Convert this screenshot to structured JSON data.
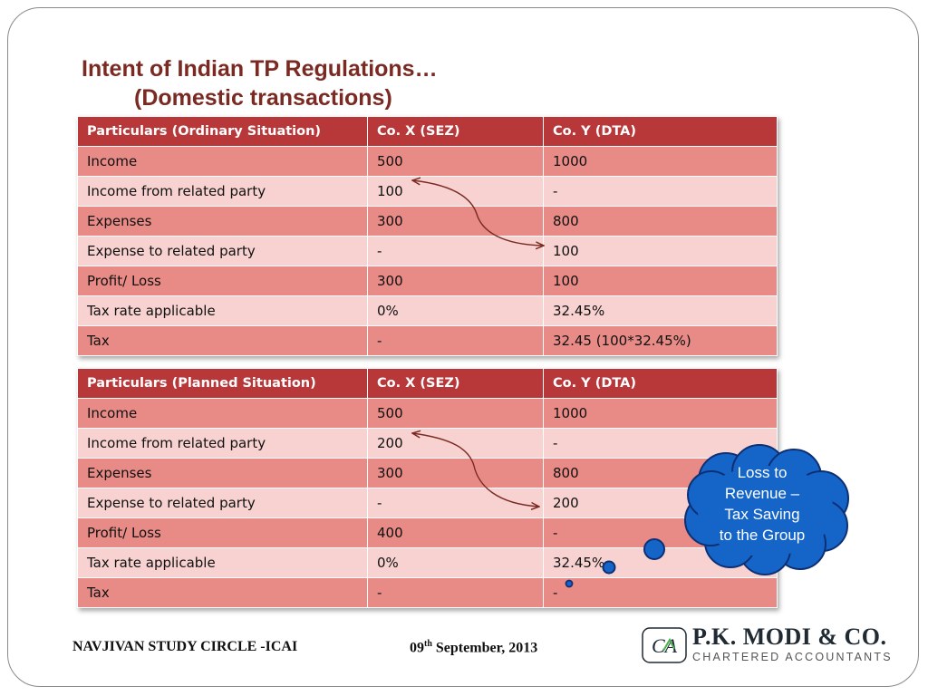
{
  "title": {
    "line1": "Intent of Indian TP Regulations…",
    "line2": "(Domestic transactions)"
  },
  "ordinary_table": {
    "headers": [
      "Particulars (Ordinary Situation)",
      "Co. X (SEZ)",
      "Co. Y  (DTA)"
    ],
    "rows": [
      [
        "Income",
        "500",
        "1000"
      ],
      [
        "Income from related party",
        "100",
        "-"
      ],
      [
        "Expenses",
        "300",
        "800"
      ],
      [
        "Expense to related party",
        "-",
        "100"
      ],
      [
        "Profit/ Loss",
        "300",
        "100"
      ],
      [
        "Tax rate applicable",
        "0%",
        "32.45%"
      ],
      [
        "Tax",
        "-",
        "32.45 (100*32.45%)"
      ]
    ]
  },
  "planned_table": {
    "headers": [
      "Particulars (Planned Situation)",
      "Co. X (SEZ)",
      "Co. Y  (DTA)"
    ],
    "rows": [
      [
        "Income",
        "500",
        "1000"
      ],
      [
        "Income from related party",
        "200",
        "-"
      ],
      [
        "Expenses",
        "300",
        "800"
      ],
      [
        "Expense to related party",
        "-",
        "200"
      ],
      [
        "Profit/ Loss",
        "400",
        "-"
      ],
      [
        "Tax rate applicable",
        "0%",
        "32.45%"
      ],
      [
        "Tax",
        "-",
        "-"
      ]
    ]
  },
  "callout": {
    "text": "Loss to\nRevenue –\nTax Saving\nto the Group"
  },
  "footer": {
    "left": "NAVJIVAN STUDY CIRCLE -ICAI",
    "date_day": "09",
    "date_suffix": "th",
    "date_rest": " September, 2013"
  },
  "logo": {
    "mark": "CA",
    "name": "P.K. MODI & CO.",
    "subtitle": "CHARTERED ACCOUNTANTS"
  },
  "colors": {
    "header": "#b8383a",
    "row_dark": "#e88b87",
    "row_light": "#f7d2d0",
    "title": "#7a2a22",
    "callout": "#1565c9"
  }
}
